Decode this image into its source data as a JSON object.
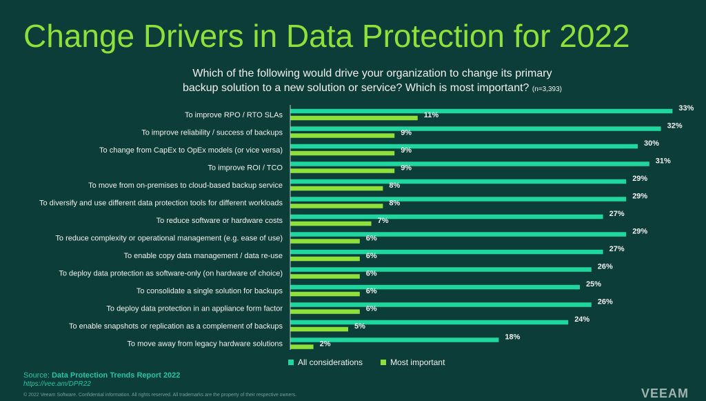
{
  "header": {
    "title": "Change Drivers in Data Protection for 2022",
    "question_line1": "Which of the following would drive your organization to change its primary",
    "question_line2": "backup solution to a new solution or service?  Which is most important?",
    "sample_size": "(n=3,393)"
  },
  "colors": {
    "accent": "#8ee03a",
    "all_considerations": "#1fd69e",
    "most_important": "#8ee03a",
    "background": "#0c3d38"
  },
  "chart_data": {
    "type": "bar",
    "orientation": "horizontal",
    "categories": [
      "To improve RPO / RTO SLAs",
      "To improve reliability / success of backups",
      "To change from CapEx to OpEx models (or vice versa)",
      "To improve ROI / TCO",
      "To move from on-premises to cloud-based backup service",
      "To diversify and use different data protection tools for different workloads",
      "To reduce software or hardware costs",
      "To reduce complexity or operational management (e.g. ease of use)",
      "To enable copy data management / data re-use",
      "To deploy data protection as software-only (on hardware of choice)",
      "To consolidate a single solution for backups",
      "To deploy data protection in an appliance form factor",
      "To enable snapshots or replication as a complement of backups",
      "To move away from legacy hardware solutions"
    ],
    "series": [
      {
        "name": "All considerations",
        "values": [
          33,
          32,
          30,
          31,
          29,
          29,
          27,
          29,
          27,
          26,
          25,
          26,
          24,
          18
        ]
      },
      {
        "name": "Most important",
        "values": [
          11,
          9,
          9,
          9,
          8,
          8,
          7,
          6,
          6,
          6,
          6,
          6,
          5,
          2
        ]
      }
    ],
    "value_suffix": "%",
    "legend": "bottom"
  },
  "footer": {
    "source_prefix": "Source: ",
    "source_name": "Data Protection Trends Report 2022",
    "url": "https://vee.am/DPR22",
    "copyright": "© 2022 Veeam Software. Confidential information. All rights reserved. All trademarks are the property of their respective owners.",
    "logo": "VEEAM"
  }
}
